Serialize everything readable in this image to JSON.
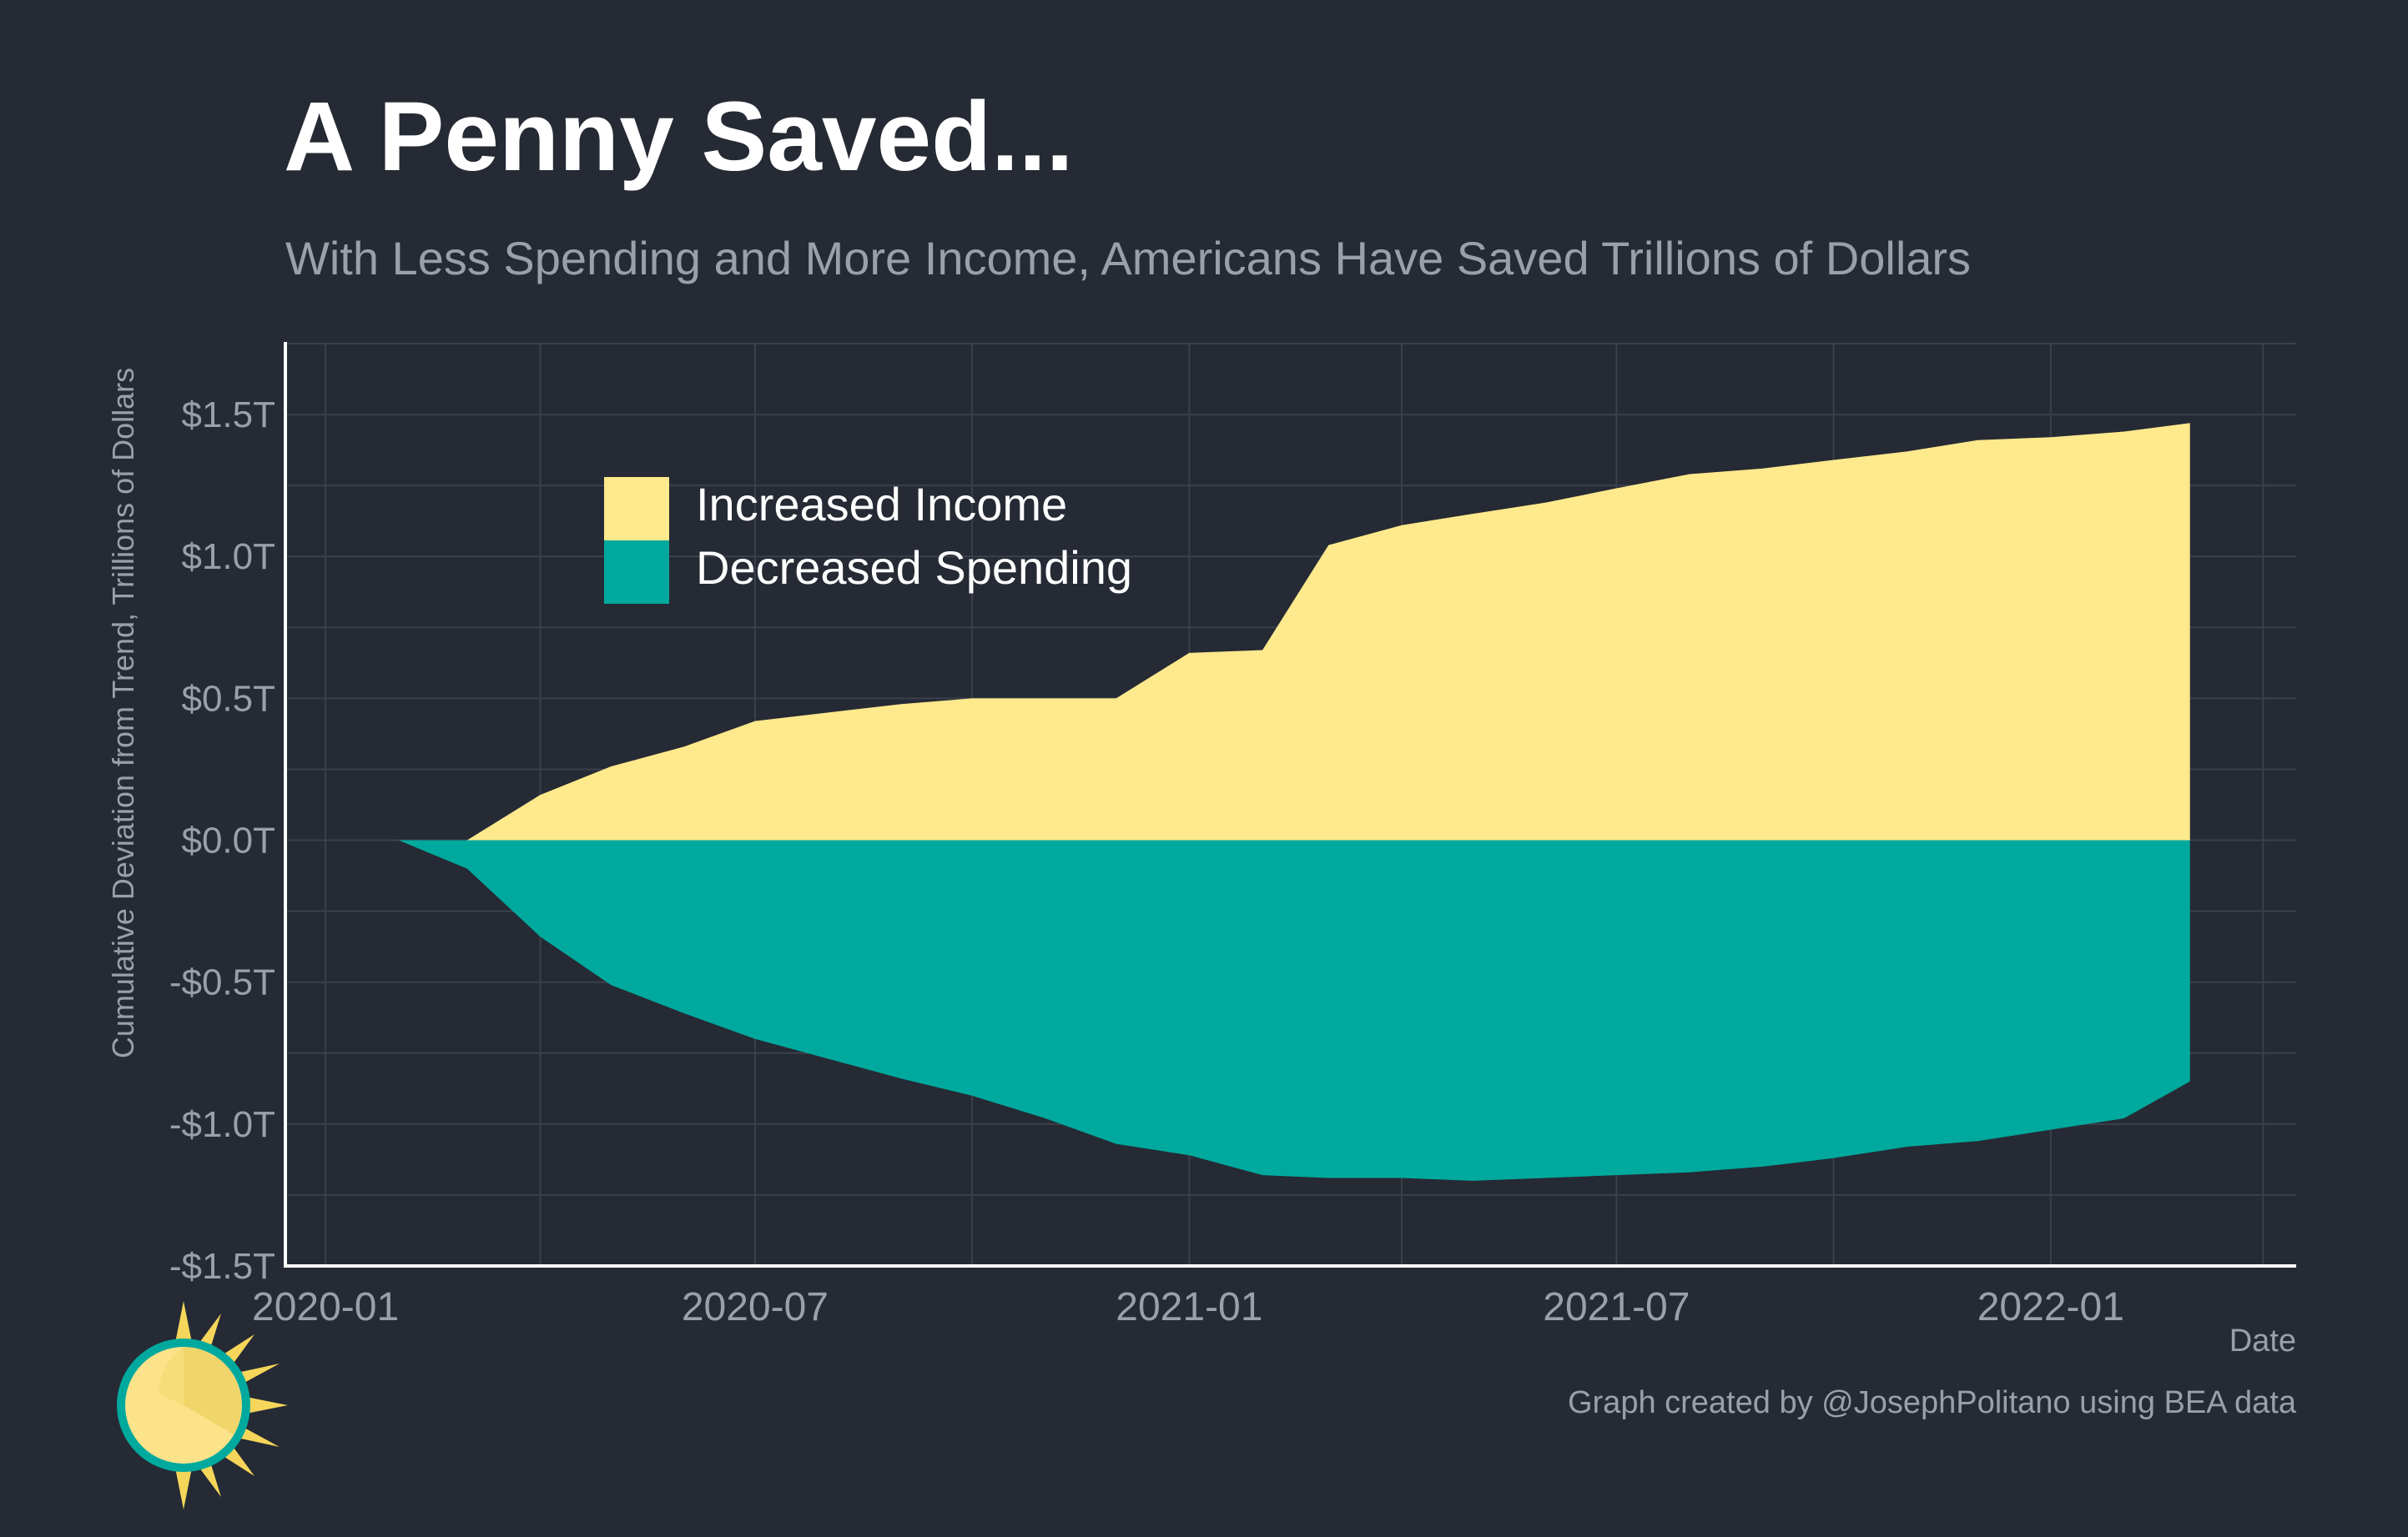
{
  "title": "A Penny Saved...",
  "subtitle": "With Less Spending and More Income, Americans Have Saved Trillions of Dollars",
  "caption": "Graph created by @JosephPolitano using BEA data",
  "chart_data": {
    "type": "area",
    "xlabel": "Date",
    "ylabel": "Cumulative Deviation from Trend, Trillions of Dollars",
    "ylim": [
      -1.5,
      1.75
    ],
    "xlim": [
      "2019-12-15",
      "2022-04-15"
    ],
    "y_ticks": [
      -1.5,
      -1.0,
      -0.5,
      0.0,
      0.5,
      1.0,
      1.5
    ],
    "y_tick_labels": [
      "-$1.5T",
      "-$1.0T",
      "-$0.5T",
      "$0.0T",
      "$0.5T",
      "$1.0T",
      "$1.5T"
    ],
    "x_ticks": [
      "2020-01-01",
      "2020-07-01",
      "2021-01-01",
      "2021-07-01",
      "2022-01-01"
    ],
    "x_tick_labels": [
      "2020-01",
      "2020-07",
      "2021-01",
      "2021-07",
      "2022-01"
    ],
    "grid": true,
    "legend_position": "top-left",
    "x": [
      "2020-01-01",
      "2020-02-01",
      "2020-03-01",
      "2020-04-01",
      "2020-05-01",
      "2020-06-01",
      "2020-07-01",
      "2020-08-01",
      "2020-09-01",
      "2020-10-01",
      "2020-11-01",
      "2020-12-01",
      "2021-01-01",
      "2021-02-01",
      "2021-03-01",
      "2021-04-01",
      "2021-05-01",
      "2021-06-01",
      "2021-07-01",
      "2021-08-01",
      "2021-09-01",
      "2021-10-01",
      "2021-11-01",
      "2021-12-01",
      "2022-01-01",
      "2022-02-01",
      "2022-03-01"
    ],
    "series": [
      {
        "name": "Increased Income",
        "color": "#ffe98d",
        "values": [
          0.0,
          0.0,
          0.0,
          0.16,
          0.26,
          0.33,
          0.42,
          0.45,
          0.48,
          0.5,
          0.5,
          0.5,
          0.66,
          0.67,
          1.04,
          1.11,
          1.15,
          1.19,
          1.24,
          1.29,
          1.31,
          1.34,
          1.37,
          1.41,
          1.42,
          1.44,
          1.47
        ]
      },
      {
        "name": "Decreased Spending",
        "color": "#00a99d",
        "values": [
          0.0,
          0.0,
          -0.1,
          -0.34,
          -0.51,
          -0.61,
          -0.7,
          -0.77,
          -0.84,
          -0.9,
          -0.98,
          -1.07,
          -1.11,
          -1.18,
          -1.19,
          -1.19,
          -1.2,
          -1.19,
          -1.18,
          -1.17,
          -1.15,
          -1.12,
          -1.08,
          -1.06,
          -1.02,
          -0.98,
          -0.85
        ]
      }
    ]
  },
  "background_color": "#252a34",
  "text_color": "#9aa0a8",
  "logo": "sun-logo-icon"
}
